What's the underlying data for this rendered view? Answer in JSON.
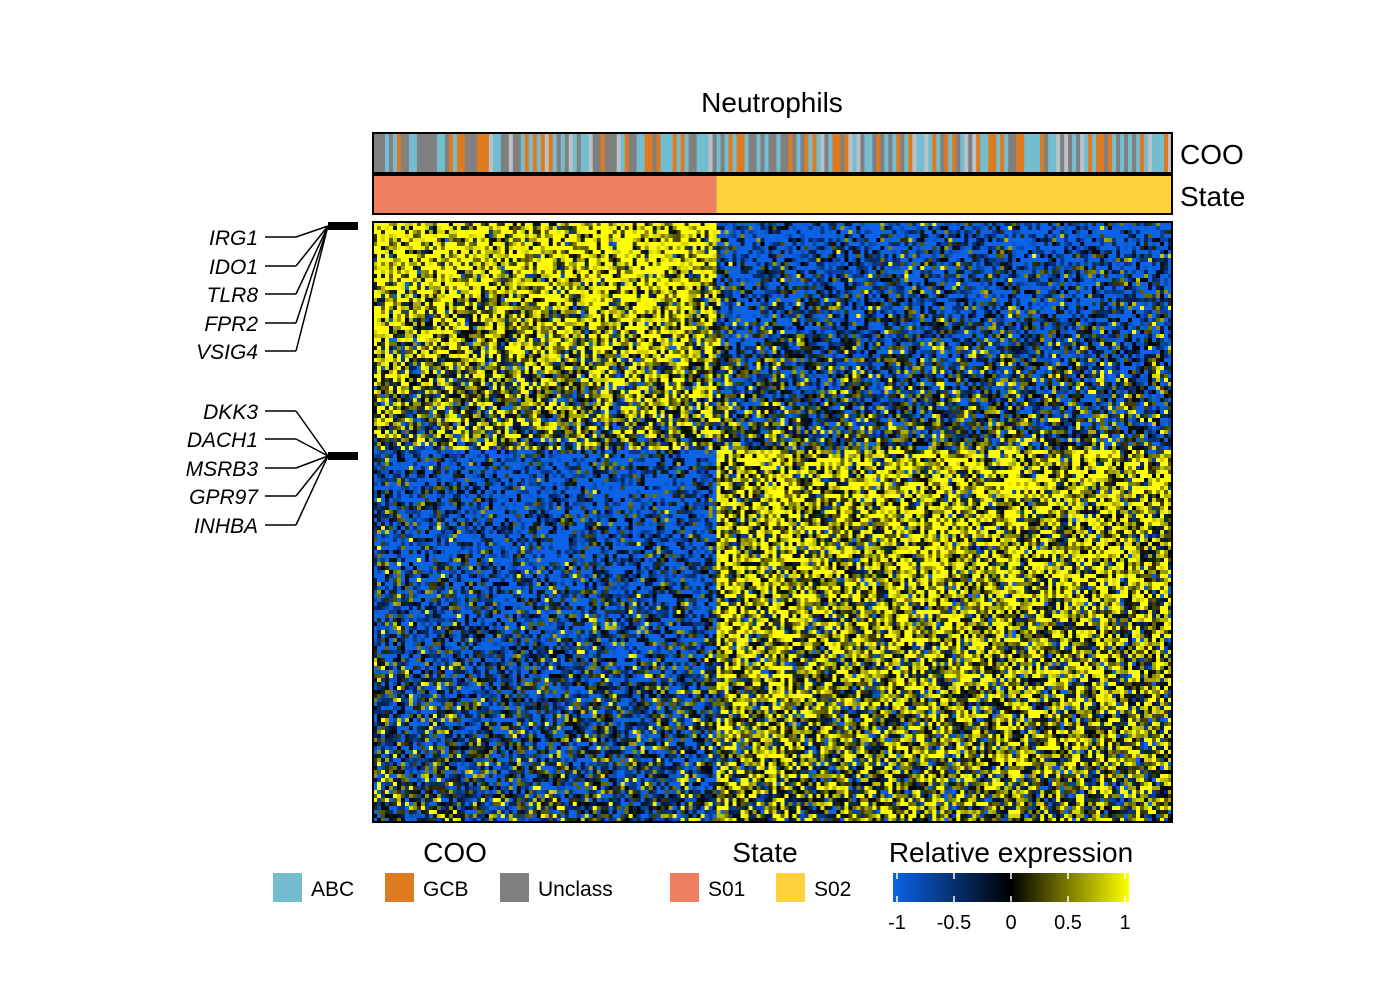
{
  "chart_data": {
    "type": "heatmap",
    "title": "Neutrophils",
    "annotation_tracks": [
      {
        "name": "COO",
        "label": "COO"
      },
      {
        "name": "State",
        "label": "State"
      }
    ],
    "n_samples": 200,
    "n_genes": 150,
    "state_split_fraction": 0.43,
    "highlighted_genes": {
      "group_top": [
        "IRG1",
        "IDO1",
        "TLR8",
        "FPR2",
        "VSIG4"
      ],
      "group_middle": [
        "DKK3",
        "DACH1",
        "MSRB3",
        "GPR97",
        "INHBA"
      ]
    },
    "legends": {
      "coo": {
        "title": "COO",
        "items": [
          {
            "label": "ABC",
            "color": "#74BDD0"
          },
          {
            "label": "GCB",
            "color": "#DE7A1F"
          },
          {
            "label": "Unclass",
            "color": "#808080"
          }
        ]
      },
      "state": {
        "title": "State",
        "items": [
          {
            "label": "S01",
            "color": "#EE7F60"
          },
          {
            "label": "S02",
            "color": "#FDD23A"
          }
        ]
      },
      "expression": {
        "title": "Relative expression",
        "range": [
          -1,
          1
        ],
        "ticks": [
          "-1",
          "-0.5",
          "0",
          "0.5",
          "1"
        ],
        "colors": [
          "#0C63E7",
          "#000000",
          "#FFFF00"
        ]
      }
    }
  }
}
